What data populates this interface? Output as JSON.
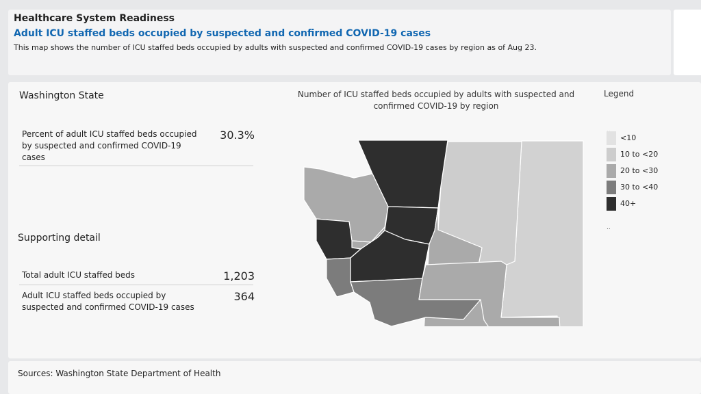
{
  "header": {
    "section_title": "Healthcare System Readiness",
    "subtitle": "Adult ICU staffed beds occupied by suspected and confirmed COVID-19 cases",
    "description": "This map shows the number of ICU staffed beds occupied by adults with suspected and confirmed COVID-19 cases by region as of Aug 23."
  },
  "summary": {
    "state_name": "Washington State",
    "percent_label": "Percent of adult ICU staffed beds occupied by suspected and confirmed COVID-19 cases",
    "percent_value": "30.3%",
    "supporting_title": "Supporting detail",
    "total_label": "Total adult ICU staffed beds",
    "total_value": "1,203",
    "occupied_label": "Adult ICU staffed beds occupied by suspected and confirmed COVID-19 cases",
    "occupied_value": "364"
  },
  "map": {
    "title": "Number of ICU staffed beds occupied by adults with suspected and confirmed COVID-19 by region",
    "legend_title": "Legend",
    "legend_dots": "..",
    "legend": [
      {
        "label": "<10",
        "color": "#e2e2e2"
      },
      {
        "label": "10 to <20",
        "color": "#cdcdcd"
      },
      {
        "label": "20 to <30",
        "color": "#aaaaaa"
      },
      {
        "label": "30 to <40",
        "color": "#7c7c7c"
      },
      {
        "label": "40+",
        "color": "#2e2e2e"
      }
    ],
    "region_colors": {
      "northwest": "#2e2e2e",
      "puget_central": "#2e2e2e",
      "southwest_central": "#2e2e2e",
      "west_coast_north": "#2e2e2e",
      "olympic": "#aaaaaa",
      "kitsap": "#aaaaaa",
      "south_central": "#aaaaaa",
      "southeast": "#aaaaaa",
      "north_central": "#cdcdcd",
      "east": "#d2d2d2",
      "coast_south": "#7c7c7c",
      "southwest": "#7c7c7c"
    }
  },
  "footer": {
    "sources": "Sources: Washington State Department of Health"
  }
}
